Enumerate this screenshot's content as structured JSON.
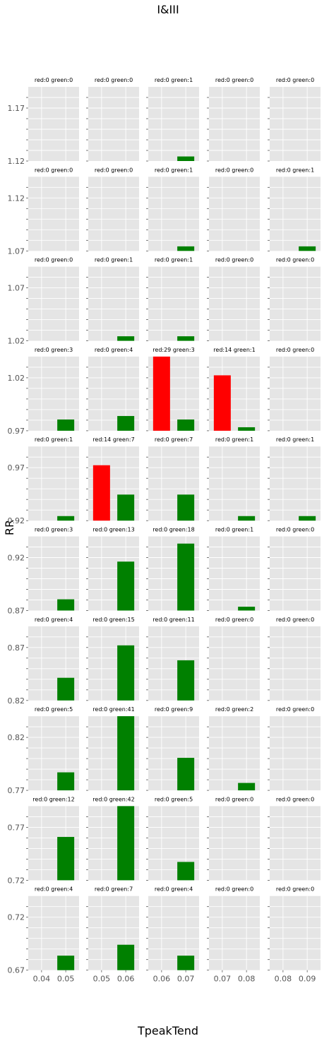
{
  "chart_data": {
    "type": "bar",
    "title": "I&III",
    "xlabel": "TpeakTend",
    "ylabel": "RR",
    "background": "#e5e5e5",
    "grid": true,
    "colors": {
      "red": "#ff0000",
      "green": "#008000"
    },
    "columns": [
      {
        "xticks": [
          "0.04",
          "0.05"
        ],
        "x_positions": [
          0.04,
          0.05
        ],
        "xlim": [
          0.0345,
          0.0555
        ]
      },
      {
        "xticks": [
          "0.05",
          "0.06"
        ],
        "x_positions": [
          0.05,
          0.06
        ],
        "xlim": [
          0.0445,
          0.0655
        ]
      },
      {
        "xticks": [
          "0.06",
          "0.07"
        ],
        "x_positions": [
          0.06,
          0.07
        ],
        "xlim": [
          0.0545,
          0.0755
        ]
      },
      {
        "xticks": [
          "0.07",
          "0.08"
        ],
        "x_positions": [
          0.07,
          0.08
        ],
        "xlim": [
          0.0645,
          0.0855
        ]
      },
      {
        "xticks": [
          "0.08",
          "0.09"
        ],
        "x_positions": [
          0.08,
          0.09
        ],
        "xlim": [
          0.0745,
          0.0955
        ]
      }
    ],
    "bar_width": 0.007,
    "rows": [
      {
        "ylim": [
          1.12,
          1.19
        ],
        "yticks": [
          "1.12",
          "1.17"
        ],
        "yvals": [
          1.12,
          1.17
        ],
        "cells": [
          {
            "title": "red:0 green:0",
            "bars": []
          },
          {
            "title": "red:0 green:0",
            "bars": []
          },
          {
            "title": "red:0 green:1",
            "bars": [
              {
                "x": 0.07,
                "bottom": 1.12,
                "top": 1.1243,
                "color": "green"
              }
            ]
          },
          {
            "title": "red:0 green:0",
            "bars": []
          },
          {
            "title": "red:0 green:0",
            "bars": []
          }
        ]
      },
      {
        "ylim": [
          1.07,
          1.14
        ],
        "yticks": [
          "1.07",
          "1.12"
        ],
        "yvals": [
          1.07,
          1.12
        ],
        "cells": [
          {
            "title": "red:0 green:0",
            "bars": []
          },
          {
            "title": "red:0 green:0",
            "bars": []
          },
          {
            "title": "red:0 green:1",
            "bars": [
              {
                "x": 0.07,
                "bottom": 1.07,
                "top": 1.0743,
                "color": "green"
              }
            ]
          },
          {
            "title": "red:0 green:0",
            "bars": []
          },
          {
            "title": "red:0 green:1",
            "bars": [
              {
                "x": 0.09,
                "bottom": 1.07,
                "top": 1.0743,
                "color": "green"
              }
            ]
          }
        ]
      },
      {
        "ylim": [
          1.02,
          1.09
        ],
        "yticks": [
          "1.02",
          "1.07"
        ],
        "yvals": [
          1.02,
          1.07
        ],
        "cells": [
          {
            "title": "red:0 green:0",
            "bars": []
          },
          {
            "title": "red:0 green:1",
            "bars": [
              {
                "x": 0.06,
                "bottom": 1.02,
                "top": 1.0243,
                "color": "green"
              }
            ]
          },
          {
            "title": "red:0 green:1",
            "bars": [
              {
                "x": 0.07,
                "bottom": 1.02,
                "top": 1.0243,
                "color": "green"
              }
            ]
          },
          {
            "title": "red:0 green:0",
            "bars": []
          },
          {
            "title": "red:0 green:0",
            "bars": []
          }
        ]
      },
      {
        "ylim": [
          0.97,
          1.04
        ],
        "yticks": [
          "0.97",
          "1.02"
        ],
        "yvals": [
          0.97,
          1.02
        ],
        "cells": [
          {
            "title": "red:0 green:3",
            "bars": [
              {
                "x": 0.05,
                "bottom": 0.97,
                "top": 0.9806,
                "color": "green"
              }
            ]
          },
          {
            "title": "red:0 green:4",
            "bars": [
              {
                "x": 0.06,
                "bottom": 0.97,
                "top": 0.9839,
                "color": "green"
              }
            ]
          },
          {
            "title": "red:29 green:3",
            "bars": [
              {
                "x": 0.06,
                "bottom": 0.97,
                "top": 1.04,
                "color": "red"
              },
              {
                "x": 0.07,
                "bottom": 0.97,
                "top": 0.9806,
                "color": "green"
              }
            ]
          },
          {
            "title": "red:14 green:1",
            "bars": [
              {
                "x": 0.07,
                "bottom": 0.97,
                "top": 1.0223,
                "color": "red"
              },
              {
                "x": 0.08,
                "bottom": 0.97,
                "top": 0.9733,
                "color": "green"
              }
            ]
          },
          {
            "title": "red:0 green:0",
            "bars": []
          }
        ]
      },
      {
        "ylim": [
          0.92,
          0.99
        ],
        "yticks": [
          "0.92",
          "0.97"
        ],
        "yvals": [
          0.92,
          0.97
        ],
        "cells": [
          {
            "title": "red:0 green:1",
            "bars": [
              {
                "x": 0.05,
                "bottom": 0.92,
                "top": 0.9243,
                "color": "green"
              }
            ]
          },
          {
            "title": "red:14 green:7",
            "bars": [
              {
                "x": 0.05,
                "bottom": 0.92,
                "top": 0.9723,
                "color": "red"
              },
              {
                "x": 0.06,
                "bottom": 0.92,
                "top": 0.9446,
                "color": "green"
              }
            ]
          },
          {
            "title": "red:0 green:7",
            "bars": [
              {
                "x": 0.07,
                "bottom": 0.92,
                "top": 0.9446,
                "color": "green"
              }
            ]
          },
          {
            "title": "red:0 green:1",
            "bars": [
              {
                "x": 0.08,
                "bottom": 0.92,
                "top": 0.9243,
                "color": "green"
              }
            ]
          },
          {
            "title": "red:0 green:1",
            "bars": [
              {
                "x": 0.09,
                "bottom": 0.92,
                "top": 0.9243,
                "color": "green"
              }
            ]
          }
        ]
      },
      {
        "ylim": [
          0.87,
          0.94
        ],
        "yticks": [
          "0.87",
          "0.92"
        ],
        "yvals": [
          0.87,
          0.92
        ],
        "cells": [
          {
            "title": "red:0 green:3",
            "bars": [
              {
                "x": 0.05,
                "bottom": 0.87,
                "top": 0.8806,
                "color": "green"
              }
            ]
          },
          {
            "title": "red:0 green:13",
            "bars": [
              {
                "x": 0.06,
                "bottom": 0.87,
                "top": 0.9162,
                "color": "green"
              }
            ]
          },
          {
            "title": "red:0 green:18",
            "bars": [
              {
                "x": 0.07,
                "bottom": 0.87,
                "top": 0.9332,
                "color": "green"
              }
            ]
          },
          {
            "title": "red:0 green:1",
            "bars": [
              {
                "x": 0.08,
                "bottom": 0.87,
                "top": 0.8736,
                "color": "green"
              }
            ]
          },
          {
            "title": "red:0 green:0",
            "bars": []
          }
        ]
      },
      {
        "ylim": [
          0.82,
          0.89
        ],
        "yticks": [
          "0.82",
          "0.87"
        ],
        "yvals": [
          0.82,
          0.87
        ],
        "cells": [
          {
            "title": "red:0 green:4",
            "bars": [
              {
                "x": 0.05,
                "bottom": 0.82,
                "top": 0.8414,
                "color": "green"
              }
            ]
          },
          {
            "title": "red:0 green:15",
            "bars": [
              {
                "x": 0.06,
                "bottom": 0.82,
                "top": 0.872,
                "color": "green"
              }
            ]
          },
          {
            "title": "red:0 green:11",
            "bars": [
              {
                "x": 0.07,
                "bottom": 0.82,
                "top": 0.8579,
                "color": "green"
              }
            ]
          },
          {
            "title": "red:0 green:0",
            "bars": []
          },
          {
            "title": "red:0 green:0",
            "bars": []
          }
        ]
      },
      {
        "ylim": [
          0.77,
          0.84
        ],
        "yticks": [
          "0.77",
          "0.82"
        ],
        "yvals": [
          0.77,
          0.82
        ],
        "cells": [
          {
            "title": "red:0 green:5",
            "bars": [
              {
                "x": 0.05,
                "bottom": 0.77,
                "top": 0.787,
                "color": "green"
              }
            ]
          },
          {
            "title": "red:0 green:41",
            "bars": [
              {
                "x": 0.06,
                "bottom": 0.77,
                "top": 0.84,
                "color": "green"
              }
            ]
          },
          {
            "title": "red:0 green:9",
            "bars": [
              {
                "x": 0.07,
                "bottom": 0.77,
                "top": 0.8007,
                "color": "green"
              }
            ]
          },
          {
            "title": "red:0 green:2",
            "bars": [
              {
                "x": 0.08,
                "bottom": 0.77,
                "top": 0.777,
                "color": "green"
              }
            ]
          },
          {
            "title": "red:0 green:0",
            "bars": []
          }
        ]
      },
      {
        "ylim": [
          0.72,
          0.79
        ],
        "yticks": [
          "0.72",
          "0.77"
        ],
        "yvals": [
          0.72,
          0.77
        ],
        "cells": [
          {
            "title": "red:0 green:12",
            "bars": [
              {
                "x": 0.05,
                "bottom": 0.72,
                "top": 0.7609,
                "color": "green"
              }
            ]
          },
          {
            "title": "red:0 green:42",
            "bars": [
              {
                "x": 0.06,
                "bottom": 0.72,
                "top": 0.79,
                "color": "green"
              }
            ]
          },
          {
            "title": "red:0 green:5",
            "bars": [
              {
                "x": 0.07,
                "bottom": 0.72,
                "top": 0.7373,
                "color": "green"
              }
            ]
          },
          {
            "title": "red:0 green:0",
            "bars": []
          },
          {
            "title": "red:0 green:0",
            "bars": []
          }
        ]
      },
      {
        "ylim": [
          0.67,
          0.74
        ],
        "yticks": [
          "0.67",
          "0.72"
        ],
        "yvals": [
          0.67,
          0.72
        ],
        "cells": [
          {
            "title": "red:0 green:4",
            "bars": [
              {
                "x": 0.05,
                "bottom": 0.67,
                "top": 0.6837,
                "color": "green"
              }
            ]
          },
          {
            "title": "red:0 green:7",
            "bars": [
              {
                "x": 0.06,
                "bottom": 0.67,
                "top": 0.694,
                "color": "green"
              }
            ]
          },
          {
            "title": "red:0 green:4",
            "bars": [
              {
                "x": 0.07,
                "bottom": 0.67,
                "top": 0.6837,
                "color": "green"
              }
            ]
          },
          {
            "title": "red:0 green:0",
            "bars": []
          },
          {
            "title": "red:0 green:0",
            "bars": []
          }
        ]
      }
    ]
  }
}
